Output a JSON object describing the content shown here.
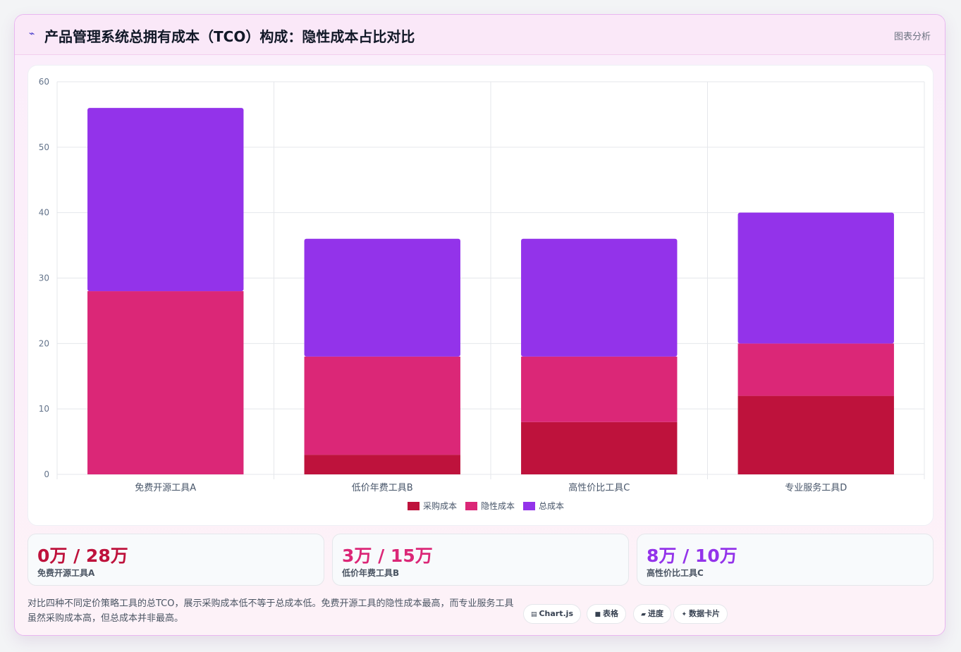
{
  "header": {
    "icon": "trend-icon",
    "title": "产品管理系统总拥有成本（TCO）构成：隐性成本占比对比",
    "link": "图表分析"
  },
  "chart_data": {
    "type": "bar",
    "stacked": true,
    "categories": [
      "免费开源工具A",
      "低价年费工具B",
      "高性价比工具C",
      "专业服务工具D"
    ],
    "series": [
      {
        "name": "采购成本",
        "color": "#be123c",
        "values": [
          0,
          3,
          8,
          12
        ]
      },
      {
        "name": "隐性成本",
        "color": "#db2777",
        "values": [
          28,
          15,
          10,
          8
        ]
      },
      {
        "name": "总成本",
        "color": "#9333ea",
        "values": [
          28,
          18,
          18,
          20
        ]
      }
    ],
    "ylim": [
      0,
      60
    ],
    "yticks": [
      0,
      10,
      20,
      30,
      40,
      50,
      60
    ],
    "grid": true,
    "legend": "bottom"
  },
  "stats": [
    {
      "value": "0万 / 28万",
      "label": "免费开源工具A",
      "color": "#be123c"
    },
    {
      "value": "3万 / 15万",
      "label": "低价年费工具B",
      "color": "#db2777"
    },
    {
      "value": "8万 / 10万",
      "label": "高性价比工具C",
      "color": "#9333ea"
    }
  ],
  "description": "对比四种不同定价策略工具的总TCO，展示采购成本低不等于总成本低。免费开源工具的隐性成本最高，而专业服务工具虽然采购成本高，但总成本并非最高。",
  "tags": [
    {
      "icon": "chart-icon",
      "glyph": "▤",
      "label": "Chart.js"
    },
    {
      "icon": "table-icon",
      "glyph": "■",
      "label": "表格"
    },
    {
      "icon": "progress-icon",
      "glyph": "▰",
      "label": "进度"
    },
    {
      "icon": "data-card-icon",
      "glyph": "✦",
      "label": "数据卡片"
    }
  ]
}
